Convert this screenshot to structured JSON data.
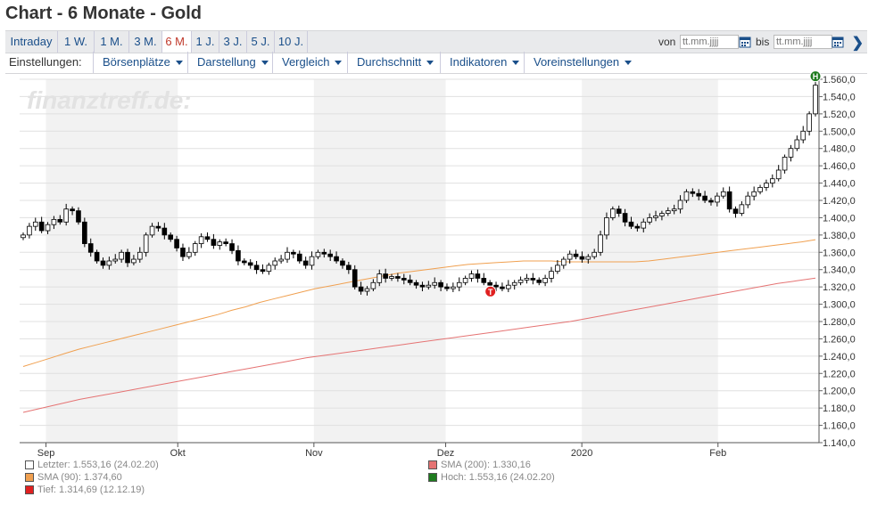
{
  "page": {
    "title": "Chart - 6 Monate - Gold"
  },
  "range_tabs": [
    {
      "label": "Intraday",
      "active": false
    },
    {
      "label": "1 W.",
      "active": false
    },
    {
      "label": "1 M.",
      "active": false
    },
    {
      "label": "3 M.",
      "active": false
    },
    {
      "label": "6 M.",
      "active": true
    },
    {
      "label": "1 J.",
      "active": false
    },
    {
      "label": "3 J.",
      "active": false
    },
    {
      "label": "5 J.",
      "active": false
    },
    {
      "label": "10 J.",
      "active": false
    }
  ],
  "date_range": {
    "from_label": "von",
    "from_placeholder": "tt.mm.jjjj",
    "to_label": "bis",
    "to_placeholder": "tt.mm.jjjj",
    "calendar_icon": "calendar-icon",
    "next_icon": "chevron-right-icon"
  },
  "settings": {
    "label": "Einstellungen:",
    "menus": [
      "Börsenplätze",
      "Darstellung",
      "Vergleich",
      "Durchschnitt",
      "Indikatoren",
      "Voreinstellungen"
    ]
  },
  "watermark": "finanztreff.de:",
  "chart_data": {
    "type": "candlestick",
    "y_ticks": [
      "1.560,0",
      "1.540,0",
      "1.520,0",
      "1.500,0",
      "1.480,0",
      "1.460,0",
      "1.440,0",
      "1.420,0",
      "1.400,0",
      "1.380,0",
      "1.360,0",
      "1.340,0",
      "1.320,0",
      "1.300,0",
      "1.280,0",
      "1.260,0",
      "1.240,0",
      "1.220,0",
      "1.200,0",
      "1.180,0",
      "1.160,0",
      "1.140,0"
    ],
    "ylim": [
      1140,
      1560
    ],
    "x_labels": [
      {
        "label": "Sep",
        "date": "2019-09-01"
      },
      {
        "label": "Okt",
        "date": "2019-10-01"
      },
      {
        "label": "Nov",
        "date": "2019-11-01"
      },
      {
        "label": "Dez",
        "date": "2019-12-01"
      },
      {
        "label": "2020",
        "date": "2020-01-01"
      },
      {
        "label": "Feb",
        "date": "2020-02-01"
      }
    ],
    "xlim": [
      "2019-08-26",
      "2020-02-24"
    ],
    "shaded_months": [
      [
        "2019-09-01",
        "2019-10-01"
      ],
      [
        "2019-11-01",
        "2019-12-01"
      ],
      [
        "2020-01-01",
        "2020-02-01"
      ]
    ],
    "close": [
      1380,
      1390,
      1395,
      1385,
      1392,
      1398,
      1395,
      1410,
      1408,
      1395,
      1370,
      1360,
      1350,
      1345,
      1350,
      1352,
      1360,
      1348,
      1352,
      1360,
      1380,
      1390,
      1388,
      1380,
      1375,
      1365,
      1355,
      1360,
      1370,
      1378,
      1375,
      1368,
      1372,
      1370,
      1362,
      1350,
      1348,
      1345,
      1340,
      1338,
      1345,
      1350,
      1352,
      1360,
      1358,
      1350,
      1345,
      1355,
      1360,
      1358,
      1355,
      1350,
      1345,
      1340,
      1320,
      1315,
      1318,
      1325,
      1335,
      1330,
      1332,
      1330,
      1328,
      1325,
      1322,
      1320,
      1322,
      1325,
      1320,
      1318,
      1320,
      1325,
      1330,
      1335,
      1330,
      1325,
      1322,
      1320,
      1318,
      1322,
      1325,
      1328,
      1330,
      1328,
      1325,
      1330,
      1338,
      1345,
      1352,
      1358,
      1355,
      1352,
      1355,
      1360,
      1380,
      1400,
      1410,
      1405,
      1395,
      1390,
      1388,
      1395,
      1400,
      1402,
      1405,
      1408,
      1410,
      1420,
      1430,
      1428,
      1425,
      1420,
      1418,
      1425,
      1430,
      1410,
      1405,
      1415,
      1425,
      1430,
      1435,
      1440,
      1445,
      1455,
      1470,
      1480,
      1490,
      1500,
      1520,
      1553.16
    ],
    "sma90": [
      1228,
      1233,
      1238,
      1243,
      1248,
      1252,
      1256,
      1260,
      1264,
      1268,
      1272,
      1276,
      1280,
      1284,
      1288,
      1293,
      1297,
      1302,
      1306,
      1310,
      1314,
      1318,
      1321,
      1324,
      1327,
      1330,
      1333,
      1336,
      1338,
      1340,
      1342,
      1344,
      1346,
      1347,
      1348,
      1349,
      1350,
      1350,
      1350,
      1349,
      1349,
      1349,
      1349,
      1349,
      1349,
      1350,
      1352,
      1354,
      1356,
      1358,
      1360,
      1362,
      1364,
      1366,
      1368,
      1370,
      1372,
      1374.6
    ],
    "sma200": [
      1175,
      1180,
      1185,
      1190,
      1194,
      1198,
      1202,
      1206,
      1210,
      1214,
      1218,
      1222,
      1226,
      1230,
      1234,
      1238,
      1241,
      1244,
      1247,
      1250,
      1253,
      1256,
      1259,
      1262,
      1265,
      1268,
      1271,
      1274,
      1277,
      1280,
      1284,
      1288,
      1292,
      1296,
      1300,
      1304,
      1308,
      1312,
      1316,
      1320,
      1324,
      1327,
      1330.16
    ],
    "high_marker": {
      "label": "H",
      "value": 1553.16,
      "date": "2020-02-24"
    },
    "low_marker": {
      "label": "T",
      "value": 1314.69,
      "date": "2019-12-12"
    },
    "legend": [
      {
        "label": "Letzter: 1.553,16 (24.02.20)",
        "color": "#ffffff"
      },
      {
        "label": "SMA (200): 1.330,16",
        "color": "#e57373"
      },
      {
        "label": "SMA (90): 1.374,60",
        "color": "#f0a050"
      },
      {
        "label": "Hoch: 1.553,16 (24.02.20)",
        "color": "#1e7b1e"
      },
      {
        "label": "Tief: 1.314,69 (12.12.19)",
        "color": "#e02020"
      }
    ],
    "colors": {
      "sma90": "#f0a050",
      "sma200": "#e57373",
      "grid": "#e0e0e0",
      "shade": "#f2f2f2"
    }
  }
}
